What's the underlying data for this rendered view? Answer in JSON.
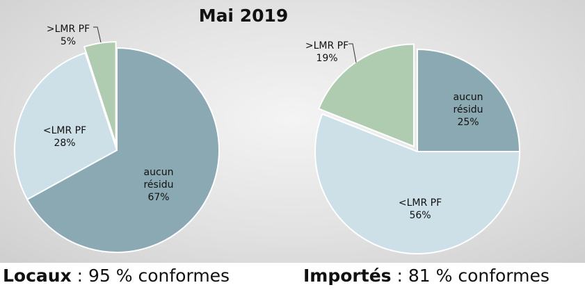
{
  "title": "Mai 2019",
  "chart_data": [
    {
      "type": "pie",
      "slices": [
        {
          "label": "aucun\nrésidu",
          "pct": "67%",
          "value": 67,
          "color": "#8ba9b2"
        },
        {
          "label": "<LMR PF",
          "pct": "28%",
          "value": 28,
          "color": "#cde0e7"
        },
        {
          "label": ">LMR PF",
          "pct": "5%",
          "value": 5,
          "color": "#b0ccb0",
          "exploded": true
        }
      ]
    },
    {
      "type": "pie",
      "slices": [
        {
          "label": "aucun\nrésidu",
          "pct": "25%",
          "value": 25,
          "color": "#8ba9b2"
        },
        {
          "label": "<LMR PF",
          "pct": "56%",
          "value": 56,
          "color": "#cde0e7"
        },
        {
          "label": ">LMR PF",
          "pct": "19%",
          "value": 19,
          "color": "#b0ccb0",
          "exploded": true
        }
      ]
    }
  ],
  "captions": [
    {
      "name": "Locaux",
      "text": " : 95 % conformes"
    },
    {
      "name": "Importés",
      "text": " : 81 % conformes"
    }
  ]
}
